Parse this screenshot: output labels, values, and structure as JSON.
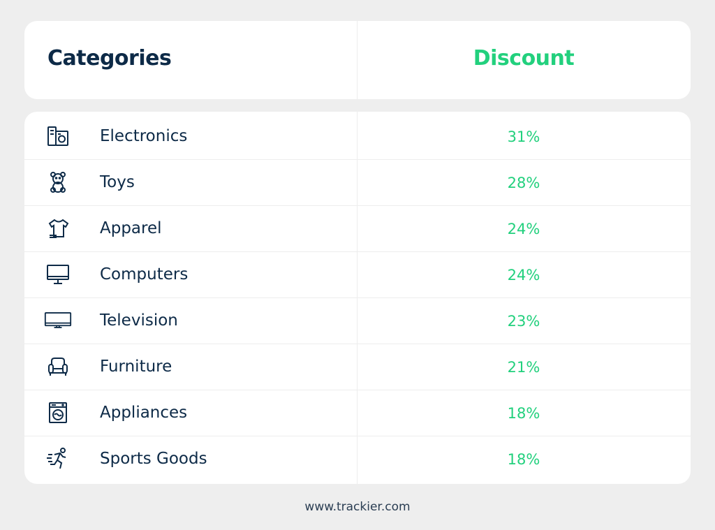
{
  "header": {
    "categories_label": "Categories",
    "discount_label": "Discount"
  },
  "chart_data": {
    "type": "table",
    "columns": [
      "Categories",
      "Discount"
    ],
    "rows": [
      {
        "category": "Electronics",
        "discount": "31%",
        "icon": "electronics-icon"
      },
      {
        "category": "Toys",
        "discount": "28%",
        "icon": "teddy-bear-icon"
      },
      {
        "category": "Apparel",
        "discount": "24%",
        "icon": "tshirt-icon"
      },
      {
        "category": "Computers",
        "discount": "24%",
        "icon": "monitor-icon"
      },
      {
        "category": "Television",
        "discount": "23%",
        "icon": "tv-icon"
      },
      {
        "category": "Furniture",
        "discount": "21%",
        "icon": "armchair-icon"
      },
      {
        "category": "Appliances",
        "discount": "18%",
        "icon": "washing-machine-icon"
      },
      {
        "category": "Sports Goods",
        "discount": "18%",
        "icon": "runner-icon"
      }
    ]
  },
  "footer": {
    "url": "www.trackier.com"
  },
  "colors": {
    "heading": "#0d2a47",
    "accent": "#22d07d",
    "background": "#eeeeee",
    "card": "#ffffff"
  }
}
